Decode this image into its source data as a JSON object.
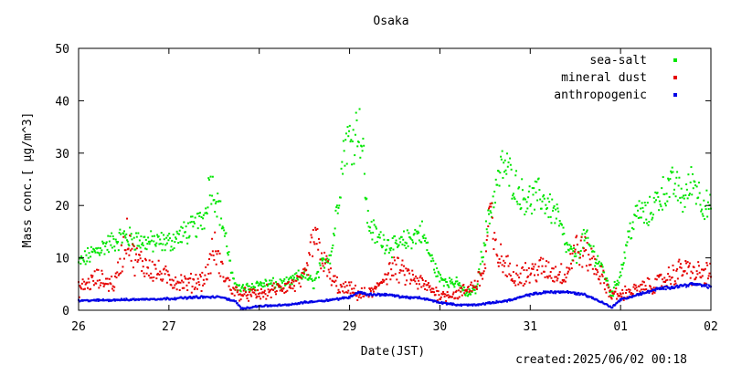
{
  "chart_data": {
    "type": "scatter",
    "title": "Osaka",
    "xlabel": "Date(JST)",
    "ylabel": "Mass conc.[ μg/m^3]",
    "footer": "created:2025/06/02 00:18",
    "x_range": [
      "2025-05-26 00:00",
      "2025-06-02 00:00"
    ],
    "x_ticks": [
      "26",
      "27",
      "28",
      "29",
      "30",
      "31",
      "01",
      "02"
    ],
    "ylim": [
      0,
      50
    ],
    "y_ticks": [
      "0",
      "10",
      "20",
      "30",
      "40",
      "50"
    ],
    "legend_position": "top-right",
    "grid": false,
    "series": [
      {
        "name": "sea-salt",
        "color": "#00e600",
        "x_days": [
          0,
          0.25,
          0.5,
          0.75,
          1,
          1.2,
          1.3,
          1.4,
          1.45,
          1.55,
          1.65,
          1.7,
          1.8,
          2,
          2.3,
          2.5,
          2.6,
          2.7,
          2.8,
          2.9,
          2.95,
          3.05,
          3.1,
          3.15,
          3.2,
          3.3,
          3.5,
          3.7,
          3.8,
          3.9,
          4,
          4.2,
          4.3,
          4.4,
          4.5,
          4.6,
          4.7,
          4.8,
          4.9,
          5,
          5.1,
          5.3,
          5.4,
          5.5,
          5.6,
          5.7,
          5.8,
          5.9,
          6,
          6.1,
          6.2,
          6.3,
          6.4,
          6.5,
          6.6,
          6.7,
          6.8,
          6.9,
          7
        ],
        "values": [
          9,
          12,
          14,
          13,
          13,
          15,
          16,
          18,
          25,
          20,
          12,
          6,
          4,
          5,
          5,
          7,
          5,
          9,
          11,
          25,
          32,
          33,
          36,
          30,
          17,
          14,
          12,
          14,
          15,
          10,
          6,
          5,
          3,
          4,
          14,
          22,
          28,
          25,
          22,
          21,
          22,
          18,
          12,
          10,
          14,
          11,
          8,
          3,
          7,
          15,
          19,
          18,
          21,
          23,
          24,
          21,
          25,
          21,
          19
        ]
      },
      {
        "name": "mineral dust",
        "color": "#e60000",
        "x_days": [
          0,
          0.2,
          0.4,
          0.55,
          0.6,
          0.8,
          1,
          1.2,
          1.4,
          1.5,
          1.6,
          1.7,
          1.8,
          2,
          2.2,
          2.4,
          2.5,
          2.55,
          2.6,
          2.7,
          2.8,
          2.9,
          3,
          3.1,
          3.2,
          3.3,
          3.4,
          3.5,
          3.6,
          3.7,
          3.8,
          3.9,
          4,
          4.2,
          4.3,
          4.4,
          4.5,
          4.55,
          4.6,
          4.7,
          4.8,
          5,
          5.1,
          5.3,
          5.4,
          5.5,
          5.6,
          5.7,
          5.8,
          5.9,
          6,
          6.2,
          6.4,
          6.6,
          6.7,
          6.8,
          7
        ],
        "values": [
          4,
          6,
          5,
          15,
          10,
          8,
          6,
          5,
          6,
          12,
          7,
          4,
          3,
          3,
          4,
          5,
          6,
          9,
          14,
          10,
          6,
          4,
          4,
          3,
          3,
          4,
          7,
          8,
          7,
          6,
          5,
          4,
          3,
          3,
          4,
          5,
          8,
          20,
          12,
          9,
          7,
          7,
          8,
          7,
          7,
          12,
          11,
          9,
          6,
          3,
          3,
          4,
          5,
          7,
          8,
          7,
          7
        ]
      },
      {
        "name": "anthropogenic",
        "color": "#0000e6",
        "x_days": [
          0,
          0.5,
          1,
          1.3,
          1.6,
          1.75,
          1.8,
          2,
          2.3,
          2.5,
          2.8,
          3,
          3.1,
          3.2,
          3.4,
          3.6,
          3.8,
          4,
          4.2,
          4.4,
          4.6,
          4.8,
          5,
          5.2,
          5.4,
          5.6,
          5.8,
          5.9,
          6,
          6.2,
          6.4,
          6.6,
          6.8,
          7
        ],
        "values": [
          1.8,
          2,
          2.2,
          2.5,
          2.5,
          1.5,
          0.3,
          0.8,
          1,
          1.5,
          2,
          2.5,
          3.5,
          3,
          3,
          2.5,
          2.3,
          1.5,
          1,
          1,
          1.5,
          2,
          3,
          3.5,
          3.5,
          3,
          1.5,
          0.5,
          2,
          3,
          4,
          4.5,
          5,
          4.5
        ]
      }
    ]
  }
}
